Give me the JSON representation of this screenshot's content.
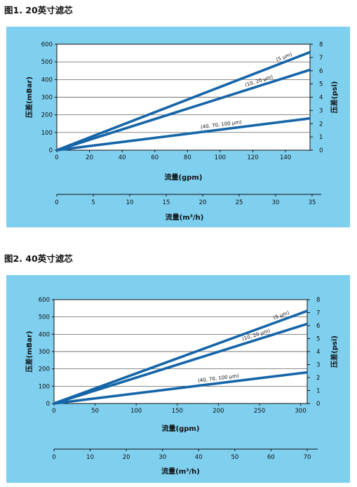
{
  "figures": [
    {
      "title": "图1. 20英寸滤芯"
    },
    {
      "title": "图2. 40英寸滤芯"
    }
  ],
  "chart_data": [
    {
      "type": "line",
      "title": "图1. 20英寸滤芯",
      "xlabel": "流量(gpm)",
      "x2label": "流量(m³/h)",
      "ylabel": "压差(mBar)",
      "y2label": "压差(psi)",
      "xlim": [
        0,
        155
      ],
      "ylim": [
        0,
        600
      ],
      "x2lim": [
        0,
        35
      ],
      "y2lim": [
        0,
        8
      ],
      "xticks": [
        0,
        20,
        40,
        60,
        80,
        100,
        120,
        140
      ],
      "yticks": [
        0,
        100,
        200,
        300,
        400,
        500,
        600
      ],
      "y2ticks": [
        0,
        1,
        2,
        3,
        4,
        5,
        6,
        7,
        8
      ],
      "x2ticks": [
        0,
        5,
        10,
        15,
        20,
        25,
        30,
        35
      ],
      "grid": true,
      "series": [
        {
          "name": "(5 μm)",
          "x": [
            0,
            155
          ],
          "y": [
            0,
            555
          ]
        },
        {
          "name": "(10, 20 μm)",
          "x": [
            0,
            155
          ],
          "y": [
            0,
            455
          ]
        },
        {
          "name": "(40, 70, 100 μm)",
          "x": [
            0,
            155
          ],
          "y": [
            0,
            180
          ]
        }
      ]
    },
    {
      "type": "line",
      "title": "图2. 40英寸滤芯",
      "xlabel": "流量(gpm)",
      "x2label": "流量(m³/h)",
      "ylabel": "压差(mBar)",
      "y2label": "压差(psi)",
      "xlim": [
        0,
        308
      ],
      "ylim": [
        0,
        600
      ],
      "x2lim": [
        0,
        70
      ],
      "y2lim": [
        0,
        8
      ],
      "xticks": [
        0,
        50,
        100,
        150,
        200,
        250,
        300
      ],
      "yticks": [
        0,
        100,
        200,
        300,
        400,
        500,
        600
      ],
      "y2ticks": [
        0,
        1,
        2,
        3,
        4,
        5,
        6,
        7,
        8
      ],
      "x2ticks": [
        0,
        10,
        20,
        30,
        40,
        50,
        60,
        70
      ],
      "grid": true,
      "series": [
        {
          "name": "(5 μm)",
          "x": [
            0,
            308
          ],
          "y": [
            0,
            535
          ]
        },
        {
          "name": "(10, 20 μm)",
          "x": [
            0,
            308
          ],
          "y": [
            0,
            460
          ]
        },
        {
          "name": "(40, 70, 100 μm)",
          "x": [
            0,
            308
          ],
          "y": [
            0,
            180
          ]
        }
      ]
    }
  ]
}
